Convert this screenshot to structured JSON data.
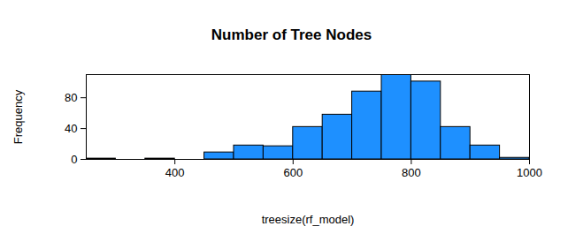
{
  "chart_data": {
    "type": "histogram",
    "title": "Number of Tree Nodes",
    "x_label": "treesize(rf_model)",
    "y_label": "Frequency",
    "bins": [
      250,
      300,
      350,
      400,
      450,
      500,
      550,
      600,
      650,
      700,
      750,
      800,
      850,
      900,
      950,
      1000
    ],
    "values": [
      1,
      0,
      1,
      0,
      9,
      18,
      17,
      42,
      58,
      88,
      110,
      101,
      42,
      18,
      2
    ],
    "color": "#1e90ff",
    "xlim": [
      250,
      1000
    ],
    "xticks": [
      400,
      600,
      800,
      1000
    ],
    "ylim": [
      0,
      110
    ],
    "yticks": [
      0,
      40,
      80
    ],
    "grid": false
  }
}
